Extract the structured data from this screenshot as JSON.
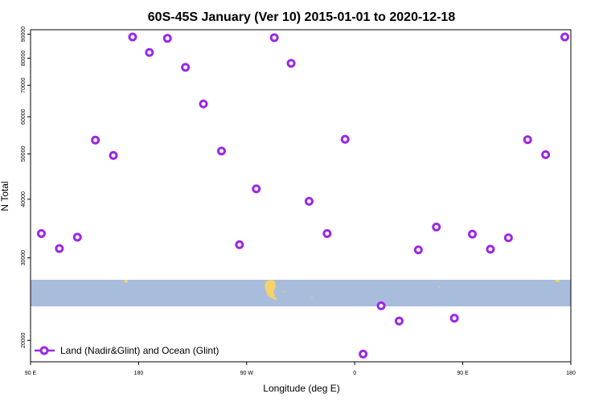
{
  "chart_data": {
    "type": "scatter",
    "title": "60S-45S January (Ver 10)   2015-01-01 to 2020-12-18",
    "xlabel": "Longitude (deg E)",
    "ylabel": "N Total",
    "x_tick_labels": [
      "90 E",
      "180",
      "90 W",
      "0",
      "90 E",
      "180"
    ],
    "x_ticks": [
      90,
      180,
      270,
      360,
      450,
      540
    ],
    "xlim": [
      90,
      540
    ],
    "y_scale": "log",
    "y_ticks": [
      20000,
      30000,
      40000,
      50000,
      60000,
      70000,
      80000,
      90000
    ],
    "y_tick_labels": [
      "20000",
      "30000",
      "40000",
      "50000",
      "60000",
      "70000",
      "80000",
      "90000"
    ],
    "ylim": [
      18000,
      92000
    ],
    "grid": false,
    "legend_position": "bottom-left",
    "colors": {
      "series": "#9B27E8",
      "ocean_band": "#A8BCDC",
      "land": "#F5D36A"
    },
    "series": [
      {
        "name": "Land (Nadir&Glint) and Ocean (Glint)",
        "x": [
          99,
          114,
          129,
          144,
          159,
          175,
          189,
          204,
          219,
          234,
          249,
          264,
          278,
          293,
          307,
          322,
          337,
          352,
          367,
          382,
          397,
          413,
          428,
          443,
          458,
          473,
          488,
          504,
          519,
          535
        ],
        "y": [
          33800,
          31400,
          33200,
          53500,
          49600,
          88800,
          82300,
          88200,
          76500,
          63900,
          50700,
          32000,
          42100,
          88500,
          78000,
          39600,
          33800,
          53700,
          18700,
          23700,
          22000,
          31200,
          34900,
          22300,
          33700,
          31300,
          33100,
          53600,
          49800,
          88800
        ]
      }
    ]
  }
}
